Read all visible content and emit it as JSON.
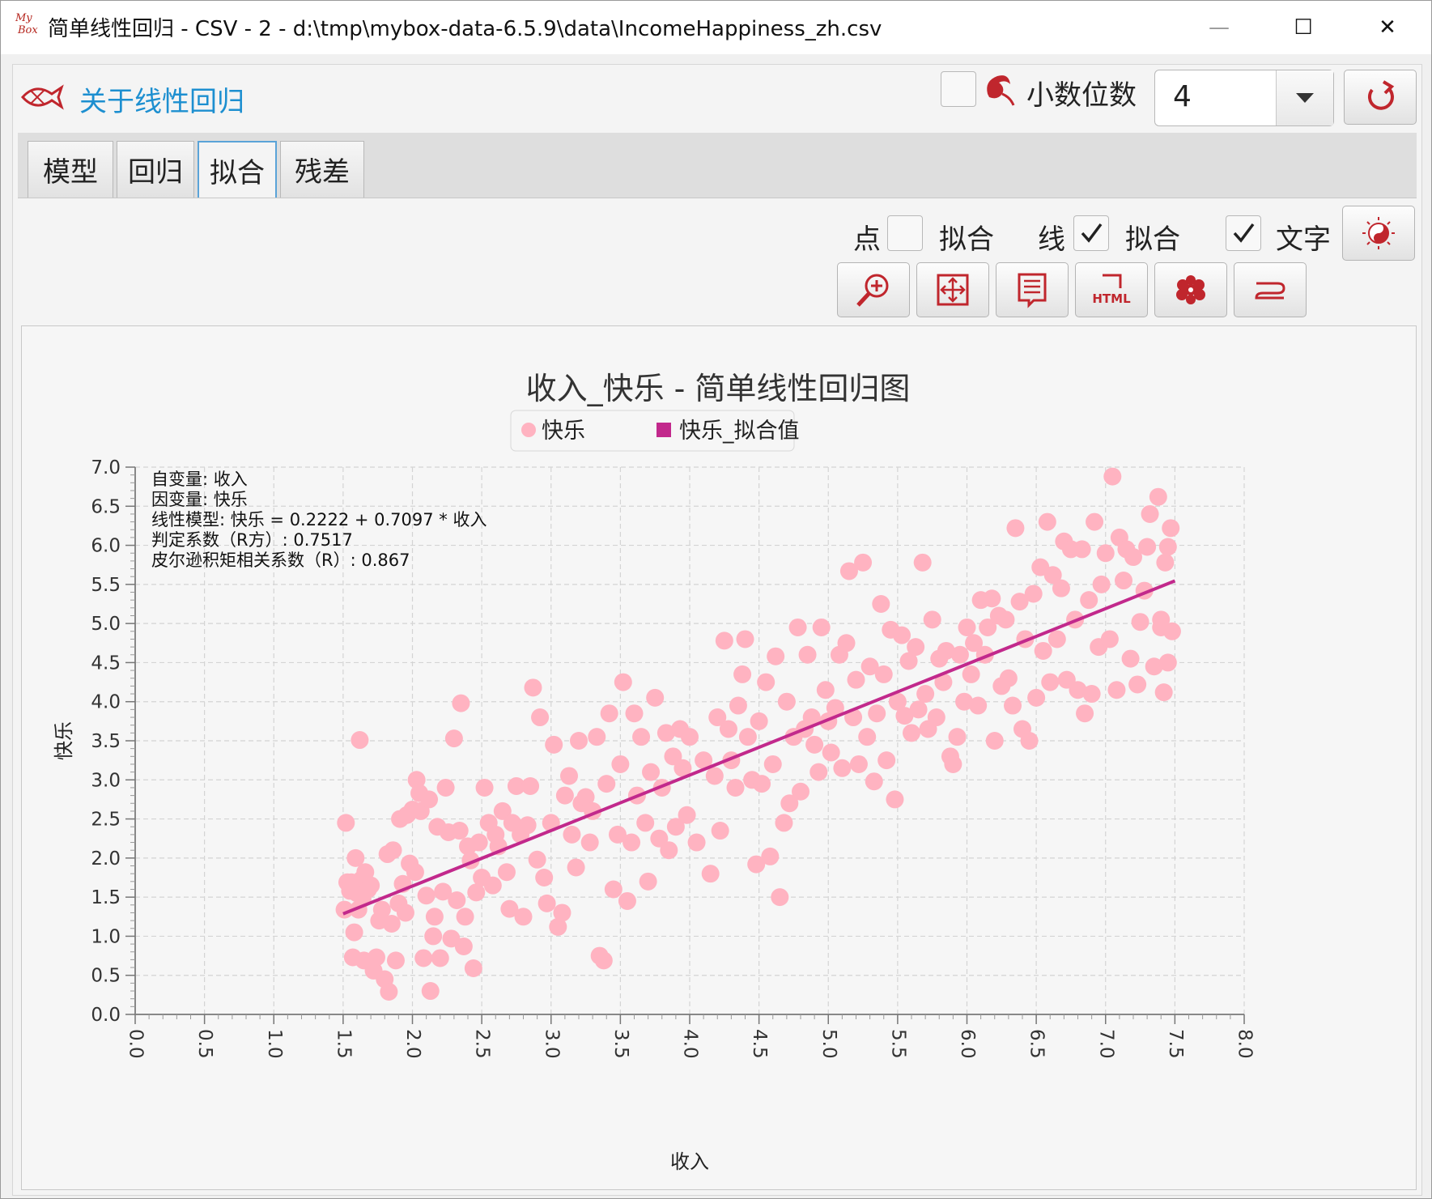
{
  "window": {
    "title": "简单线性回归 - CSV - 2 - d:\\tmp\\mybox-data-6.5.9\\data\\IncomeHappiness_zh.csv",
    "logo_text_1": "My",
    "logo_text_2": "Box",
    "minimize_symbol": "—",
    "maximize_symbol": "☐",
    "close_symbol": "✕"
  },
  "header": {
    "about_link": "关于线性回归",
    "decimal_label": "小数位数",
    "decimal_value": "4"
  },
  "tabs": [
    {
      "label": "模型"
    },
    {
      "label": "回归"
    },
    {
      "label": "拟合",
      "active": true
    },
    {
      "label": "残差"
    }
  ],
  "options": {
    "point_label": "点",
    "point_fit_label": "拟合",
    "point_checked": false,
    "line_label": "线",
    "line_fit_label": "拟合",
    "line_checked": true,
    "text_label": "文字",
    "text_checked": true
  },
  "toolbar_icons": [
    "zoom-in-icon",
    "fit-screen-icon",
    "data-list-icon",
    "html-icon",
    "peony-icon",
    "menu-icon"
  ],
  "html_icon_text": "HTML",
  "chart_data": {
    "type": "scatter",
    "title": "收入_快乐 - 简单线性回归图",
    "xlabel": "收入",
    "ylabel": "快乐",
    "xlim": [
      0.0,
      8.0
    ],
    "ylim": [
      0.0,
      7.0
    ],
    "x_ticks": [
      "0.0",
      "0.5",
      "1.0",
      "1.5",
      "2.0",
      "2.5",
      "3.0",
      "3.5",
      "4.0",
      "4.5",
      "5.0",
      "5.5",
      "6.0",
      "6.5",
      "7.0",
      "7.5",
      "8.0"
    ],
    "y_ticks": [
      "0.0",
      "0.5",
      "1.0",
      "1.5",
      "2.0",
      "2.5",
      "3.0",
      "3.5",
      "4.0",
      "4.5",
      "5.0",
      "5.5",
      "6.0",
      "6.5",
      "7.0"
    ],
    "grid": true,
    "legend": [
      {
        "name": "快乐",
        "color": "#ffb3c1",
        "shape": "circle"
      },
      {
        "name": "快乐_拟合值",
        "color": "#c2298c",
        "shape": "square"
      }
    ],
    "annotations": [
      "自变量: 收入",
      "因变量: 快乐",
      "线性模型: 快乐 = 0.2222 + 0.7097 * 收入",
      "判定系数（R方）: 0.7517",
      "皮尔逊积矩相关系数（R）: 0.867"
    ],
    "fit_line": {
      "intercept": 0.2222,
      "slope": 0.7097,
      "x_range": [
        1.5,
        7.5
      ]
    },
    "series": [
      {
        "name": "快乐",
        "points": [
          [
            1.51,
            1.34
          ],
          [
            1.52,
            2.45
          ],
          [
            1.53,
            1.69
          ],
          [
            1.55,
            1.58
          ],
          [
            1.56,
            1.69
          ],
          [
            1.57,
            0.73
          ],
          [
            1.58,
            1.05
          ],
          [
            1.59,
            2.0
          ],
          [
            1.6,
            1.55
          ],
          [
            1.61,
            1.34
          ],
          [
            1.62,
            3.51
          ],
          [
            1.63,
            1.72
          ],
          [
            1.64,
            1.48
          ],
          [
            1.65,
            0.69
          ],
          [
            1.66,
            1.82
          ],
          [
            1.68,
            1.6
          ],
          [
            1.7,
            1.65
          ],
          [
            1.72,
            0.56
          ],
          [
            1.74,
            0.73
          ],
          [
            1.76,
            1.2
          ],
          [
            1.78,
            1.34
          ],
          [
            1.8,
            0.45
          ],
          [
            1.82,
            2.05
          ],
          [
            1.83,
            0.29
          ],
          [
            1.85,
            1.16
          ],
          [
            1.86,
            2.1
          ],
          [
            1.88,
            0.69
          ],
          [
            1.9,
            1.42
          ],
          [
            1.91,
            2.5
          ],
          [
            1.93,
            1.67
          ],
          [
            1.95,
            1.3
          ],
          [
            1.96,
            2.55
          ],
          [
            1.98,
            1.93
          ],
          [
            2.0,
            2.62
          ],
          [
            2.02,
            1.82
          ],
          [
            2.03,
            3.0
          ],
          [
            2.05,
            2.83
          ],
          [
            2.06,
            2.6
          ],
          [
            2.08,
            0.72
          ],
          [
            2.1,
            1.52
          ],
          [
            2.12,
            2.75
          ],
          [
            2.13,
            0.3
          ],
          [
            2.15,
            1.0
          ],
          [
            2.16,
            1.25
          ],
          [
            2.18,
            2.4
          ],
          [
            2.2,
            0.72
          ],
          [
            2.22,
            1.57
          ],
          [
            2.24,
            2.9
          ],
          [
            2.26,
            2.33
          ],
          [
            2.28,
            0.97
          ],
          [
            2.3,
            3.53
          ],
          [
            2.32,
            1.46
          ],
          [
            2.34,
            2.35
          ],
          [
            2.35,
            3.98
          ],
          [
            2.37,
            0.87
          ],
          [
            2.38,
            1.25
          ],
          [
            2.4,
            2.15
          ],
          [
            2.42,
            1.97
          ],
          [
            2.44,
            0.59
          ],
          [
            2.46,
            1.56
          ],
          [
            2.48,
            2.2
          ],
          [
            2.5,
            1.75
          ],
          [
            2.52,
            2.9
          ],
          [
            2.55,
            2.45
          ],
          [
            2.58,
            1.65
          ],
          [
            2.6,
            2.3
          ],
          [
            2.62,
            2.15
          ],
          [
            2.65,
            2.6
          ],
          [
            2.68,
            1.82
          ],
          [
            2.7,
            1.35
          ],
          [
            2.72,
            2.45
          ],
          [
            2.75,
            2.92
          ],
          [
            2.78,
            2.3
          ],
          [
            2.8,
            1.25
          ],
          [
            2.83,
            2.42
          ],
          [
            2.85,
            2.92
          ],
          [
            2.87,
            4.18
          ],
          [
            2.9,
            1.98
          ],
          [
            2.92,
            3.8
          ],
          [
            2.95,
            1.75
          ],
          [
            2.97,
            1.42
          ],
          [
            3.0,
            2.45
          ],
          [
            3.02,
            3.45
          ],
          [
            3.05,
            1.12
          ],
          [
            3.08,
            1.3
          ],
          [
            3.1,
            2.8
          ],
          [
            3.13,
            3.05
          ],
          [
            3.15,
            2.3
          ],
          [
            3.18,
            1.88
          ],
          [
            3.2,
            3.5
          ],
          [
            3.22,
            2.7
          ],
          [
            3.25,
            2.78
          ],
          [
            3.28,
            2.2
          ],
          [
            3.3,
            2.6
          ],
          [
            3.33,
            3.55
          ],
          [
            3.35,
            0.75
          ],
          [
            3.38,
            0.69
          ],
          [
            3.4,
            2.95
          ],
          [
            3.42,
            3.85
          ],
          [
            3.45,
            1.6
          ],
          [
            3.48,
            2.3
          ],
          [
            3.5,
            3.2
          ],
          [
            3.52,
            4.25
          ],
          [
            3.55,
            1.45
          ],
          [
            3.58,
            2.2
          ],
          [
            3.6,
            3.85
          ],
          [
            3.62,
            2.8
          ],
          [
            3.65,
            3.55
          ],
          [
            3.68,
            2.45
          ],
          [
            3.7,
            1.7
          ],
          [
            3.72,
            3.1
          ],
          [
            3.75,
            4.05
          ],
          [
            3.78,
            2.25
          ],
          [
            3.8,
            2.9
          ],
          [
            3.83,
            3.6
          ],
          [
            3.85,
            2.1
          ],
          [
            3.88,
            3.3
          ],
          [
            3.9,
            2.4
          ],
          [
            3.93,
            3.65
          ],
          [
            3.95,
            3.15
          ],
          [
            3.98,
            2.55
          ],
          [
            4.0,
            3.55
          ],
          [
            4.05,
            2.2
          ],
          [
            4.1,
            3.25
          ],
          [
            4.15,
            1.8
          ],
          [
            4.18,
            3.05
          ],
          [
            4.2,
            3.8
          ],
          [
            4.22,
            2.35
          ],
          [
            4.25,
            4.78
          ],
          [
            4.28,
            3.65
          ],
          [
            4.3,
            3.25
          ],
          [
            4.33,
            2.9
          ],
          [
            4.35,
            3.95
          ],
          [
            4.38,
            4.35
          ],
          [
            4.4,
            4.8
          ],
          [
            4.42,
            3.55
          ],
          [
            4.45,
            3.0
          ],
          [
            4.48,
            1.92
          ],
          [
            4.5,
            3.75
          ],
          [
            4.52,
            2.95
          ],
          [
            4.55,
            4.25
          ],
          [
            4.58,
            2.02
          ],
          [
            4.6,
            3.2
          ],
          [
            4.62,
            4.58
          ],
          [
            4.65,
            1.5
          ],
          [
            4.68,
            2.45
          ],
          [
            4.7,
            4.0
          ],
          [
            4.72,
            2.7
          ],
          [
            4.75,
            3.55
          ],
          [
            4.78,
            4.95
          ],
          [
            4.8,
            2.85
          ],
          [
            4.83,
            3.65
          ],
          [
            4.85,
            4.6
          ],
          [
            4.88,
            3.8
          ],
          [
            4.9,
            3.45
          ],
          [
            4.93,
            3.1
          ],
          [
            4.95,
            4.95
          ],
          [
            4.98,
            4.15
          ],
          [
            5.0,
            3.75
          ],
          [
            5.02,
            3.35
          ],
          [
            5.05,
            3.92
          ],
          [
            5.08,
            4.6
          ],
          [
            5.1,
            3.15
          ],
          [
            5.13,
            4.75
          ],
          [
            5.15,
            5.67
          ],
          [
            5.18,
            3.8
          ],
          [
            5.2,
            4.28
          ],
          [
            5.22,
            3.2
          ],
          [
            5.25,
            5.78
          ],
          [
            5.28,
            3.55
          ],
          [
            5.3,
            4.45
          ],
          [
            5.33,
            2.98
          ],
          [
            5.35,
            3.85
          ],
          [
            5.38,
            5.25
          ],
          [
            5.4,
            4.35
          ],
          [
            5.42,
            3.25
          ],
          [
            5.45,
            4.92
          ],
          [
            5.48,
            2.75
          ],
          [
            5.5,
            4.0
          ],
          [
            5.53,
            4.85
          ],
          [
            5.55,
            3.82
          ],
          [
            5.58,
            4.52
          ],
          [
            5.6,
            3.6
          ],
          [
            5.63,
            4.7
          ],
          [
            5.65,
            3.9
          ],
          [
            5.68,
            5.78
          ],
          [
            5.7,
            4.1
          ],
          [
            5.72,
            3.65
          ],
          [
            5.75,
            5.05
          ],
          [
            5.78,
            3.8
          ],
          [
            5.8,
            4.55
          ],
          [
            5.83,
            4.25
          ],
          [
            5.85,
            4.65
          ],
          [
            5.88,
            3.3
          ],
          [
            5.9,
            3.2
          ],
          [
            5.93,
            3.55
          ],
          [
            5.95,
            4.6
          ],
          [
            5.98,
            4.0
          ],
          [
            6.0,
            4.95
          ],
          [
            6.03,
            4.35
          ],
          [
            6.05,
            4.75
          ],
          [
            6.08,
            3.95
          ],
          [
            6.1,
            5.3
          ],
          [
            6.13,
            4.6
          ],
          [
            6.15,
            4.95
          ],
          [
            6.18,
            5.32
          ],
          [
            6.2,
            3.5
          ],
          [
            6.23,
            5.1
          ],
          [
            6.25,
            4.2
          ],
          [
            6.28,
            5.05
          ],
          [
            6.3,
            4.3
          ],
          [
            6.33,
            3.95
          ],
          [
            6.35,
            6.22
          ],
          [
            6.38,
            5.28
          ],
          [
            6.4,
            3.65
          ],
          [
            6.42,
            4.8
          ],
          [
            6.45,
            3.5
          ],
          [
            6.48,
            5.38
          ],
          [
            6.5,
            4.05
          ],
          [
            6.53,
            5.72
          ],
          [
            6.55,
            4.65
          ],
          [
            6.58,
            6.3
          ],
          [
            6.6,
            4.25
          ],
          [
            6.62,
            5.62
          ],
          [
            6.65,
            4.8
          ],
          [
            6.68,
            5.45
          ],
          [
            6.7,
            6.05
          ],
          [
            6.72,
            4.28
          ],
          [
            6.75,
            5.95
          ],
          [
            6.78,
            5.05
          ],
          [
            6.8,
            4.15
          ],
          [
            6.83,
            5.95
          ],
          [
            6.85,
            3.85
          ],
          [
            6.88,
            5.3
          ],
          [
            6.9,
            4.1
          ],
          [
            6.92,
            6.3
          ],
          [
            6.95,
            4.7
          ],
          [
            6.97,
            5.5
          ],
          [
            7.0,
            5.9
          ],
          [
            7.03,
            4.8
          ],
          [
            7.05,
            6.88
          ],
          [
            7.08,
            4.15
          ],
          [
            7.1,
            6.1
          ],
          [
            7.13,
            5.55
          ],
          [
            7.15,
            5.95
          ],
          [
            7.18,
            4.55
          ],
          [
            7.2,
            5.85
          ],
          [
            7.23,
            4.22
          ],
          [
            7.25,
            5.02
          ],
          [
            7.28,
            5.42
          ],
          [
            7.3,
            5.98
          ],
          [
            7.32,
            6.4
          ],
          [
            7.35,
            4.45
          ],
          [
            7.38,
            6.62
          ],
          [
            7.4,
            4.95
          ],
          [
            7.42,
            4.12
          ],
          [
            7.45,
            5.98
          ],
          [
            7.47,
            6.22
          ],
          [
            7.48,
            4.9
          ],
          [
            7.45,
            4.5
          ],
          [
            7.43,
            5.78
          ],
          [
            7.4,
            5.05
          ]
        ]
      },
      {
        "name": "快乐_拟合值",
        "type": "line",
        "points": [
          [
            1.5,
            1.287
          ],
          [
            7.5,
            5.545
          ]
        ]
      }
    ]
  }
}
